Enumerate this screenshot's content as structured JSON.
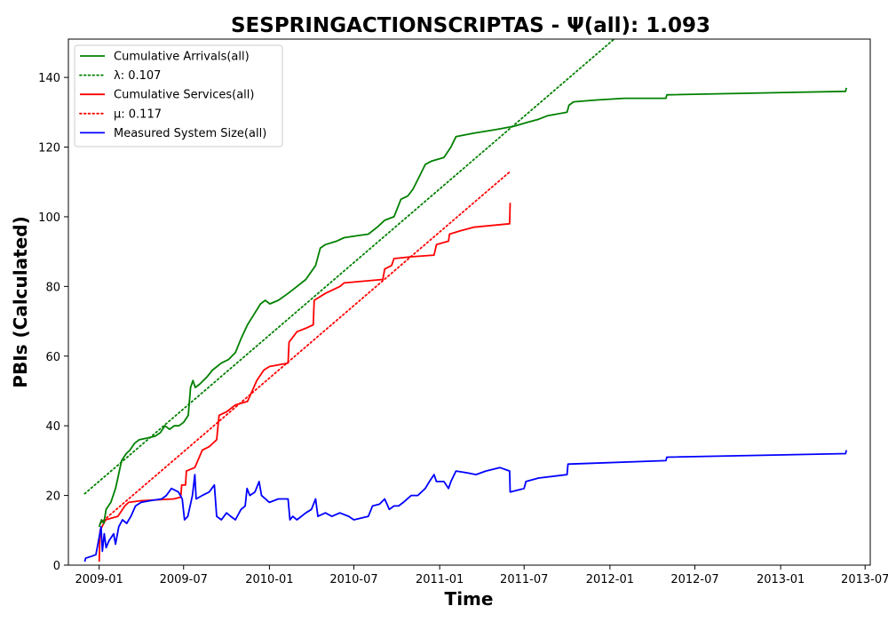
{
  "chart_data": {
    "type": "line",
    "title": "SESPRINGACTIONSCRIPTAS -  Ψ(all): 1.093",
    "xlabel": "Time",
    "ylabel": "PBIs (Calculated)",
    "xlim": [
      "2008-10-27",
      "2013-07-12"
    ],
    "ylim": [
      0,
      151
    ],
    "x_ticks": [
      "2009-01",
      "2009-07",
      "2010-01",
      "2010-07",
      "2011-01",
      "2011-07",
      "2012-01",
      "2012-07",
      "2013-01",
      "2013-07"
    ],
    "y_ticks": [
      0,
      20,
      40,
      60,
      80,
      100,
      120,
      140
    ],
    "grid": false,
    "legend_position": "top-left",
    "series": [
      {
        "name": "Cumulative Arrivals(all)",
        "color": "#008000",
        "style": "solid",
        "points": [
          [
            "2009-01-01",
            11
          ],
          [
            "2009-01-06",
            13
          ],
          [
            "2009-01-11",
            12
          ],
          [
            "2009-01-16",
            16
          ],
          [
            "2009-01-26",
            18
          ],
          [
            "2009-02-05",
            22
          ],
          [
            "2009-02-10",
            25
          ],
          [
            "2009-02-18",
            30
          ],
          [
            "2009-02-28",
            32
          ],
          [
            "2009-03-08",
            33
          ],
          [
            "2009-03-18",
            35
          ],
          [
            "2009-03-28",
            36
          ],
          [
            "2009-04-15",
            36.5
          ],
          [
            "2009-05-01",
            37
          ],
          [
            "2009-05-12",
            38
          ],
          [
            "2009-05-22",
            40
          ],
          [
            "2009-06-01",
            39
          ],
          [
            "2009-06-11",
            40
          ],
          [
            "2009-06-21",
            40
          ],
          [
            "2009-07-01",
            41
          ],
          [
            "2009-07-11",
            43
          ],
          [
            "2009-07-16",
            51
          ],
          [
            "2009-07-21",
            53
          ],
          [
            "2009-07-26",
            51
          ],
          [
            "2009-08-05",
            52
          ],
          [
            "2009-08-20",
            54
          ],
          [
            "2009-09-01",
            56
          ],
          [
            "2009-09-20",
            58
          ],
          [
            "2009-10-05",
            59
          ],
          [
            "2009-10-20",
            61
          ],
          [
            "2009-11-01",
            65
          ],
          [
            "2009-11-15",
            69
          ],
          [
            "2009-11-29",
            72
          ],
          [
            "2009-12-13",
            75
          ],
          [
            "2009-12-23",
            76
          ],
          [
            "2010-01-02",
            75
          ],
          [
            "2010-01-20",
            76
          ],
          [
            "2010-02-10",
            78
          ],
          [
            "2010-03-01",
            80
          ],
          [
            "2010-03-20",
            82
          ],
          [
            "2010-04-10",
            86
          ],
          [
            "2010-04-20",
            91
          ],
          [
            "2010-05-01",
            92
          ],
          [
            "2010-05-25",
            93
          ],
          [
            "2010-06-10",
            94
          ],
          [
            "2010-07-05",
            94.5
          ],
          [
            "2010-08-01",
            95
          ],
          [
            "2010-08-20",
            97
          ],
          [
            "2010-09-05",
            99
          ],
          [
            "2010-09-25",
            100
          ],
          [
            "2010-10-10",
            105
          ],
          [
            "2010-10-25",
            106
          ],
          [
            "2010-11-05",
            108
          ],
          [
            "2010-11-20",
            112
          ],
          [
            "2010-12-01",
            115
          ],
          [
            "2010-12-15",
            116
          ],
          [
            "2011-01-10",
            117
          ],
          [
            "2011-01-25",
            120
          ],
          [
            "2011-02-05",
            123
          ],
          [
            "2011-03-15",
            124
          ],
          [
            "2011-05-01",
            125
          ],
          [
            "2011-06-10",
            126
          ],
          [
            "2011-07-05",
            127
          ],
          [
            "2011-08-01",
            128
          ],
          [
            "2011-08-20",
            129
          ],
          [
            "2011-10-01",
            130
          ],
          [
            "2011-10-05",
            132
          ],
          [
            "2011-10-15",
            133
          ],
          [
            "2011-12-01",
            133.5
          ],
          [
            "2012-02-01",
            134
          ],
          [
            "2012-04-30",
            134
          ],
          [
            "2012-05-02",
            135
          ],
          [
            "2013-05-20",
            136
          ],
          [
            "2013-05-22",
            137
          ]
        ]
      },
      {
        "name": "λ: 0.107",
        "color": "#008000",
        "style": "dotted",
        "points": [
          [
            "2008-12-01",
            20.5
          ],
          [
            "2012-01-10",
            151
          ]
        ]
      },
      {
        "name": "Cumulative Services(all)",
        "color": "#ff0000",
        "style": "solid",
        "points": [
          [
            "2009-01-01",
            1
          ],
          [
            "2009-01-03",
            10
          ],
          [
            "2009-01-15",
            13
          ],
          [
            "2009-02-10",
            14
          ],
          [
            "2009-02-25",
            17
          ],
          [
            "2009-03-05",
            18
          ],
          [
            "2009-04-01",
            18.5
          ],
          [
            "2009-06-10",
            19
          ],
          [
            "2009-06-25",
            19.5
          ],
          [
            "2009-06-27",
            23
          ],
          [
            "2009-07-05",
            23
          ],
          [
            "2009-07-07",
            27
          ],
          [
            "2009-07-25",
            28
          ],
          [
            "2009-08-10",
            33
          ],
          [
            "2009-08-25",
            34
          ],
          [
            "2009-09-10",
            36
          ],
          [
            "2009-09-15",
            43
          ],
          [
            "2009-10-01",
            44
          ],
          [
            "2009-10-20",
            46
          ],
          [
            "2009-11-15",
            47
          ],
          [
            "2009-11-25",
            50
          ],
          [
            "2009-12-05",
            53
          ],
          [
            "2009-12-20",
            56
          ],
          [
            "2010-01-01",
            57
          ],
          [
            "2010-02-10",
            58
          ],
          [
            "2010-02-12",
            64
          ],
          [
            "2010-03-01",
            67
          ],
          [
            "2010-03-20",
            68
          ],
          [
            "2010-04-05",
            69
          ],
          [
            "2010-04-07",
            76
          ],
          [
            "2010-05-01",
            78
          ],
          [
            "2010-06-01",
            80
          ],
          [
            "2010-06-10",
            81
          ],
          [
            "2010-09-01",
            82
          ],
          [
            "2010-09-05",
            85
          ],
          [
            "2010-09-20",
            86
          ],
          [
            "2010-09-25",
            88
          ],
          [
            "2010-11-01",
            88.5
          ],
          [
            "2010-12-20",
            89
          ],
          [
            "2010-12-25",
            92
          ],
          [
            "2011-01-20",
            93
          ],
          [
            "2011-01-22",
            95
          ],
          [
            "2011-02-15",
            96
          ],
          [
            "2011-03-15",
            97
          ],
          [
            "2011-05-31",
            98
          ],
          [
            "2011-06-01",
            104
          ]
        ]
      },
      {
        "name": "μ: 0.117",
        "color": "#ff0000",
        "style": "dotted",
        "points": [
          [
            "2009-01-03",
            12
          ],
          [
            "2011-06-01",
            113
          ]
        ]
      },
      {
        "name": "Measured System Size(all)",
        "color": "#0000ff",
        "style": "solid",
        "points": [
          [
            "2008-12-01",
            1
          ],
          [
            "2008-12-03",
            2
          ],
          [
            "2008-12-15",
            2.5
          ],
          [
            "2008-12-25",
            3
          ],
          [
            "2009-01-01",
            8
          ],
          [
            "2009-01-05",
            11
          ],
          [
            "2009-01-08",
            4
          ],
          [
            "2009-01-12",
            9
          ],
          [
            "2009-01-16",
            5
          ],
          [
            "2009-01-22",
            7
          ],
          [
            "2009-02-01",
            9
          ],
          [
            "2009-02-05",
            6
          ],
          [
            "2009-02-12",
            11
          ],
          [
            "2009-02-20",
            13
          ],
          [
            "2009-03-01",
            12
          ],
          [
            "2009-03-10",
            14
          ],
          [
            "2009-03-20",
            17
          ],
          [
            "2009-04-01",
            18
          ],
          [
            "2009-04-20",
            18.5
          ],
          [
            "2009-05-15",
            19
          ],
          [
            "2009-05-25",
            20
          ],
          [
            "2009-06-05",
            22
          ],
          [
            "2009-06-20",
            21
          ],
          [
            "2009-06-28",
            19
          ],
          [
            "2009-07-03",
            13
          ],
          [
            "2009-07-10",
            14
          ],
          [
            "2009-07-20",
            20
          ],
          [
            "2009-07-25",
            26
          ],
          [
            "2009-07-28",
            19
          ],
          [
            "2009-08-10",
            20
          ],
          [
            "2009-08-25",
            21
          ],
          [
            "2009-09-05",
            23
          ],
          [
            "2009-09-10",
            14
          ],
          [
            "2009-09-20",
            13
          ],
          [
            "2009-10-01",
            15
          ],
          [
            "2009-10-10",
            14
          ],
          [
            "2009-10-20",
            13
          ],
          [
            "2009-11-01",
            16
          ],
          [
            "2009-11-10",
            17
          ],
          [
            "2009-11-14",
            22
          ],
          [
            "2009-11-20",
            20
          ],
          [
            "2009-12-01",
            21
          ],
          [
            "2009-12-10",
            24
          ],
          [
            "2009-12-15",
            20
          ],
          [
            "2010-01-01",
            18
          ],
          [
            "2010-01-20",
            19
          ],
          [
            "2010-02-10",
            19
          ],
          [
            "2010-02-14",
            13
          ],
          [
            "2010-02-20",
            14
          ],
          [
            "2010-03-01",
            13
          ],
          [
            "2010-03-20",
            15
          ],
          [
            "2010-04-01",
            16
          ],
          [
            "2010-04-10",
            19
          ],
          [
            "2010-04-15",
            14
          ],
          [
            "2010-05-01",
            15
          ],
          [
            "2010-05-15",
            14
          ],
          [
            "2010-06-01",
            15
          ],
          [
            "2010-06-20",
            14
          ],
          [
            "2010-07-01",
            13
          ],
          [
            "2010-08-01",
            14
          ],
          [
            "2010-08-10",
            17
          ],
          [
            "2010-08-25",
            17.5
          ],
          [
            "2010-09-05",
            19
          ],
          [
            "2010-09-15",
            16
          ],
          [
            "2010-09-25",
            17
          ],
          [
            "2010-10-05",
            17
          ],
          [
            "2010-10-15",
            18
          ],
          [
            "2010-11-01",
            20
          ],
          [
            "2010-11-15",
            20
          ],
          [
            "2010-12-01",
            22
          ],
          [
            "2010-12-10",
            24
          ],
          [
            "2010-12-20",
            26
          ],
          [
            "2010-12-25",
            24
          ],
          [
            "2011-01-10",
            24
          ],
          [
            "2011-01-20",
            22
          ],
          [
            "2011-01-25",
            24
          ],
          [
            "2011-02-05",
            27
          ],
          [
            "2011-03-01",
            26.5
          ],
          [
            "2011-03-20",
            26
          ],
          [
            "2011-04-10",
            27
          ],
          [
            "2011-05-10",
            28
          ],
          [
            "2011-05-31",
            27
          ],
          [
            "2011-06-01",
            21
          ],
          [
            "2011-07-01",
            22
          ],
          [
            "2011-07-05",
            24
          ],
          [
            "2011-08-01",
            25
          ],
          [
            "2011-10-01",
            26
          ],
          [
            "2011-10-03",
            29
          ],
          [
            "2012-04-30",
            30
          ],
          [
            "2012-05-02",
            31
          ],
          [
            "2013-05-20",
            32
          ],
          [
            "2013-05-22",
            33
          ]
        ]
      }
    ]
  }
}
